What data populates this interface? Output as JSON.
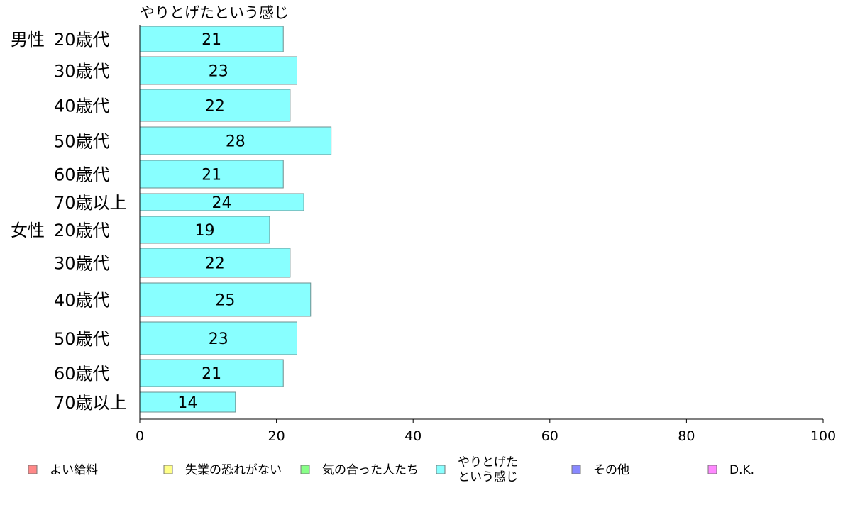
{
  "chart_data": {
    "type": "bar",
    "orientation": "horizontal",
    "series_title": "やりとげたという感じ",
    "groups": [
      {
        "label": "男性",
        "start": 0
      },
      {
        "label": "女性",
        "start": 6
      }
    ],
    "categories": [
      "20歳代",
      "30歳代",
      "40歳代",
      "50歳代",
      "60歳代",
      "70歳以上",
      "20歳代",
      "30歳代",
      "40歳代",
      "50歳代",
      "60歳代",
      "70歳以上"
    ],
    "series": [
      {
        "name": "やりとげたという感じ",
        "color": "#88ffff",
        "values": [
          21,
          23,
          22,
          28,
          21,
          24,
          19,
          22,
          25,
          23,
          21,
          14
        ]
      }
    ],
    "value_labels": [
      "21",
      "23",
      "22",
      "28",
      "21",
      "24",
      "19",
      "22",
      "25",
      "23",
      "21",
      "14"
    ],
    "xlim": [
      0,
      100
    ],
    "xticks": [
      0,
      20,
      40,
      60,
      80,
      100
    ],
    "xtick_labels": [
      "0",
      "20",
      "40",
      "60",
      "80",
      "100"
    ],
    "grid": false,
    "legend": {
      "position": "bottom",
      "entries": [
        {
          "label": "よい給料",
          "color": "#ff8888"
        },
        {
          "label": "失業の恐れがない",
          "color": "#ffff88"
        },
        {
          "label": "気の合った人たち",
          "color": "#88ff88"
        },
        {
          "label": "やりとげた",
          "label_line2": "という感じ",
          "color": "#88ffff"
        },
        {
          "label": "その他",
          "color": "#8888ff"
        },
        {
          "label": "D.K.",
          "color": "#ff88ff"
        }
      ]
    }
  }
}
